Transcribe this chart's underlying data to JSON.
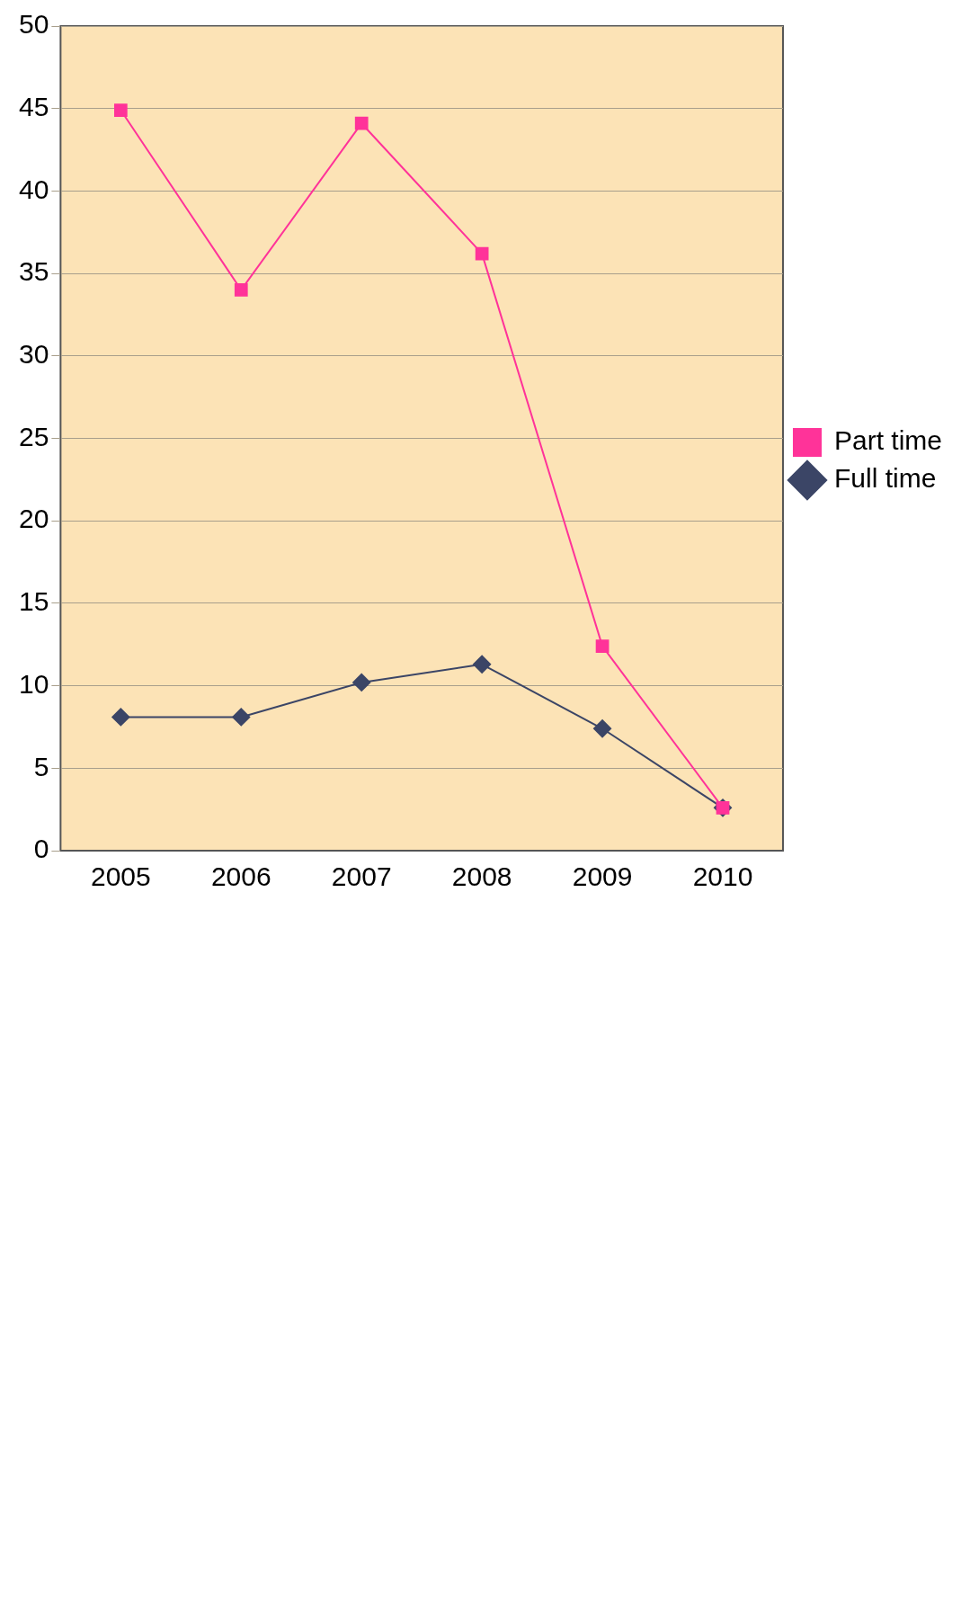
{
  "chart_data": {
    "type": "line",
    "categories": [
      "2005",
      "2006",
      "2007",
      "2008",
      "2009",
      "2010"
    ],
    "series": [
      {
        "name": "Full time",
        "color": "#3b4566",
        "marker": "diamond",
        "values": [
          8.1,
          8.1,
          10.2,
          11.3,
          7.4,
          2.6
        ]
      },
      {
        "name": "Part time",
        "color": "#ff3399",
        "marker": "square",
        "values": [
          44.9,
          34.0,
          44.1,
          36.2,
          12.4,
          2.6
        ]
      }
    ],
    "ylim": [
      0,
      50
    ],
    "yticks": [
      0,
      5,
      10,
      15,
      20,
      25,
      30,
      35,
      40,
      45,
      50
    ],
    "grid": "y",
    "legend": "right",
    "line_style": "solid"
  }
}
